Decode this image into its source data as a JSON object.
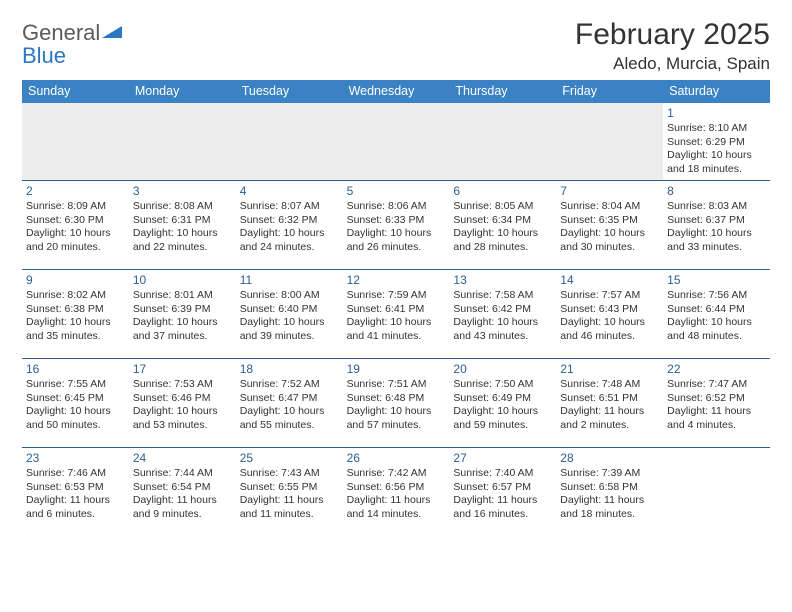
{
  "logo": {
    "part1": "General",
    "part2": "Blue"
  },
  "title": "February 2025",
  "location": "Aledo, Murcia, Spain",
  "colors": {
    "header_bg": "#3b82c4",
    "header_text": "#ffffff",
    "divider": "#2f5d8a",
    "daynum": "#2b5f90",
    "body_text": "#333333",
    "logo_gray": "#5b5b5b",
    "logo_blue": "#2b78c2",
    "empty_bg": "#ededed"
  },
  "day_names": [
    "Sunday",
    "Monday",
    "Tuesday",
    "Wednesday",
    "Thursday",
    "Friday",
    "Saturday"
  ],
  "weeks": [
    [
      null,
      null,
      null,
      null,
      null,
      null,
      {
        "n": "1",
        "sr": "8:10 AM",
        "ss": "6:29 PM",
        "dl": "10 hours and 18 minutes."
      }
    ],
    [
      {
        "n": "2",
        "sr": "8:09 AM",
        "ss": "6:30 PM",
        "dl": "10 hours and 20 minutes."
      },
      {
        "n": "3",
        "sr": "8:08 AM",
        "ss": "6:31 PM",
        "dl": "10 hours and 22 minutes."
      },
      {
        "n": "4",
        "sr": "8:07 AM",
        "ss": "6:32 PM",
        "dl": "10 hours and 24 minutes."
      },
      {
        "n": "5",
        "sr": "8:06 AM",
        "ss": "6:33 PM",
        "dl": "10 hours and 26 minutes."
      },
      {
        "n": "6",
        "sr": "8:05 AM",
        "ss": "6:34 PM",
        "dl": "10 hours and 28 minutes."
      },
      {
        "n": "7",
        "sr": "8:04 AM",
        "ss": "6:35 PM",
        "dl": "10 hours and 30 minutes."
      },
      {
        "n": "8",
        "sr": "8:03 AM",
        "ss": "6:37 PM",
        "dl": "10 hours and 33 minutes."
      }
    ],
    [
      {
        "n": "9",
        "sr": "8:02 AM",
        "ss": "6:38 PM",
        "dl": "10 hours and 35 minutes."
      },
      {
        "n": "10",
        "sr": "8:01 AM",
        "ss": "6:39 PM",
        "dl": "10 hours and 37 minutes."
      },
      {
        "n": "11",
        "sr": "8:00 AM",
        "ss": "6:40 PM",
        "dl": "10 hours and 39 minutes."
      },
      {
        "n": "12",
        "sr": "7:59 AM",
        "ss": "6:41 PM",
        "dl": "10 hours and 41 minutes."
      },
      {
        "n": "13",
        "sr": "7:58 AM",
        "ss": "6:42 PM",
        "dl": "10 hours and 43 minutes."
      },
      {
        "n": "14",
        "sr": "7:57 AM",
        "ss": "6:43 PM",
        "dl": "10 hours and 46 minutes."
      },
      {
        "n": "15",
        "sr": "7:56 AM",
        "ss": "6:44 PM",
        "dl": "10 hours and 48 minutes."
      }
    ],
    [
      {
        "n": "16",
        "sr": "7:55 AM",
        "ss": "6:45 PM",
        "dl": "10 hours and 50 minutes."
      },
      {
        "n": "17",
        "sr": "7:53 AM",
        "ss": "6:46 PM",
        "dl": "10 hours and 53 minutes."
      },
      {
        "n": "18",
        "sr": "7:52 AM",
        "ss": "6:47 PM",
        "dl": "10 hours and 55 minutes."
      },
      {
        "n": "19",
        "sr": "7:51 AM",
        "ss": "6:48 PM",
        "dl": "10 hours and 57 minutes."
      },
      {
        "n": "20",
        "sr": "7:50 AM",
        "ss": "6:49 PM",
        "dl": "10 hours and 59 minutes."
      },
      {
        "n": "21",
        "sr": "7:48 AM",
        "ss": "6:51 PM",
        "dl": "11 hours and 2 minutes."
      },
      {
        "n": "22",
        "sr": "7:47 AM",
        "ss": "6:52 PM",
        "dl": "11 hours and 4 minutes."
      }
    ],
    [
      {
        "n": "23",
        "sr": "7:46 AM",
        "ss": "6:53 PM",
        "dl": "11 hours and 6 minutes."
      },
      {
        "n": "24",
        "sr": "7:44 AM",
        "ss": "6:54 PM",
        "dl": "11 hours and 9 minutes."
      },
      {
        "n": "25",
        "sr": "7:43 AM",
        "ss": "6:55 PM",
        "dl": "11 hours and 11 minutes."
      },
      {
        "n": "26",
        "sr": "7:42 AM",
        "ss": "6:56 PM",
        "dl": "11 hours and 14 minutes."
      },
      {
        "n": "27",
        "sr": "7:40 AM",
        "ss": "6:57 PM",
        "dl": "11 hours and 16 minutes."
      },
      {
        "n": "28",
        "sr": "7:39 AM",
        "ss": "6:58 PM",
        "dl": "11 hours and 18 minutes."
      },
      null
    ]
  ],
  "labels": {
    "sunrise": "Sunrise: ",
    "sunset": "Sunset: ",
    "daylight": "Daylight: "
  }
}
